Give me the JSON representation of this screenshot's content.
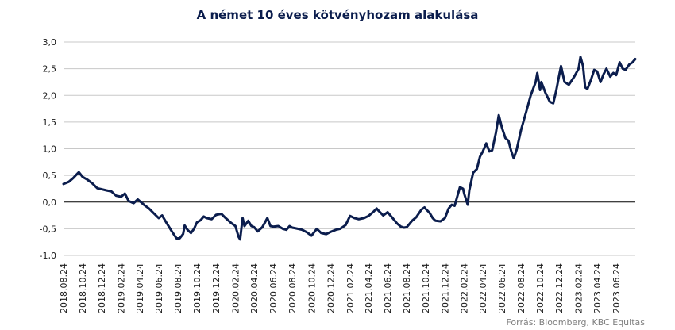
{
  "chart_data": {
    "type": "line",
    "title": "A német 10 éves kötvényhozam alakulása",
    "source": "Forrás: Bloomberg, KBC Equitas",
    "ylim": [
      -1.0,
      3.0
    ],
    "yticks": [
      "3,0",
      "2,5",
      "2,0",
      "1,5",
      "1,0",
      "0,5",
      "0,0",
      "-0,5",
      "-1,0"
    ],
    "ytick_values": [
      3.0,
      2.5,
      2.0,
      1.5,
      1.0,
      0.5,
      0.0,
      -0.5,
      -1.0
    ],
    "grid": true,
    "xticks": [
      "2018.08.24",
      "2018.10.24",
      "2018.12.24",
      "2019.02.24",
      "2019.04.24",
      "2019.06.24",
      "2019.08.24",
      "2019.10.24",
      "2019.12.24",
      "2020.02.24",
      "2020.04.24",
      "2020.06.24",
      "2020.08.24",
      "2020.10.24",
      "2020.12.24",
      "2021.02.24",
      "2021.04.24",
      "2021.06.24",
      "2021.08.24",
      "2021.10.24",
      "2021.12.24",
      "2022.02.24",
      "2022.04.24",
      "2022.06.24",
      "2022.08.24",
      "2022.10.24",
      "2022.12.24",
      "2023.02.24",
      "2023.04.24",
      "2023.06.24"
    ],
    "x_range": [
      "2018.08.24",
      "2023.08.24"
    ],
    "colors": {
      "line": "#0b1d4d",
      "grid": "#c8c8c8",
      "zero_line": "#000000"
    },
    "series": [
      {
        "values": [
          [
            "2018.08.24",
            0.34
          ],
          [
            "2018.09.10",
            0.38
          ],
          [
            "2018.09.24",
            0.45
          ],
          [
            "2018.10.05",
            0.52
          ],
          [
            "2018.10.12",
            0.56
          ],
          [
            "2018.10.24",
            0.47
          ],
          [
            "2018.11.08",
            0.42
          ],
          [
            "2018.11.24",
            0.35
          ],
          [
            "2018.12.10",
            0.26
          ],
          [
            "2018.12.24",
            0.24
          ],
          [
            "2019.01.08",
            0.22
          ],
          [
            "2019.01.24",
            0.2
          ],
          [
            "2019.02.08",
            0.12
          ],
          [
            "2019.02.24",
            0.1
          ],
          [
            "2019.03.08",
            0.16
          ],
          [
            "2019.03.20",
            0.02
          ],
          [
            "2019.04.05",
            -0.02
          ],
          [
            "2019.04.18",
            0.05
          ],
          [
            "2019.04.24",
            0.02
          ],
          [
            "2019.05.10",
            -0.06
          ],
          [
            "2019.05.24",
            -0.12
          ],
          [
            "2019.06.10",
            -0.22
          ],
          [
            "2019.06.24",
            -0.3
          ],
          [
            "2019.07.05",
            -0.25
          ],
          [
            "2019.07.20",
            -0.4
          ],
          [
            "2019.08.05",
            -0.55
          ],
          [
            "2019.08.20",
            -0.68
          ],
          [
            "2019.08.30",
            -0.68
          ],
          [
            "2019.09.10",
            -0.6
          ],
          [
            "2019.09.15",
            -0.44
          ],
          [
            "2019.09.24",
            -0.52
          ],
          [
            "2019.10.05",
            -0.58
          ],
          [
            "2019.10.15",
            -0.5
          ],
          [
            "2019.10.24",
            -0.38
          ],
          [
            "2019.11.05",
            -0.34
          ],
          [
            "2019.11.15",
            -0.27
          ],
          [
            "2019.11.24",
            -0.3
          ],
          [
            "2019.12.10",
            -0.32
          ],
          [
            "2019.12.24",
            -0.24
          ],
          [
            "2020.01.10",
            -0.22
          ],
          [
            "2020.01.24",
            -0.3
          ],
          [
            "2020.02.10",
            -0.39
          ],
          [
            "2020.02.24",
            -0.45
          ],
          [
            "2020.03.05",
            -0.65
          ],
          [
            "2020.03.10",
            -0.7
          ],
          [
            "2020.03.18",
            -0.3
          ],
          [
            "2020.03.24",
            -0.45
          ],
          [
            "2020.04.05",
            -0.35
          ],
          [
            "2020.04.15",
            -0.45
          ],
          [
            "2020.04.24",
            -0.47
          ],
          [
            "2020.05.05",
            -0.55
          ],
          [
            "2020.05.20",
            -0.47
          ],
          [
            "2020.06.05",
            -0.3
          ],
          [
            "2020.06.15",
            -0.45
          ],
          [
            "2020.06.24",
            -0.46
          ],
          [
            "2020.07.10",
            -0.45
          ],
          [
            "2020.07.24",
            -0.5
          ],
          [
            "2020.08.05",
            -0.52
          ],
          [
            "2020.08.15",
            -0.45
          ],
          [
            "2020.08.24",
            -0.48
          ],
          [
            "2020.09.10",
            -0.5
          ],
          [
            "2020.09.24",
            -0.52
          ],
          [
            "2020.10.10",
            -0.57
          ],
          [
            "2020.10.24",
            -0.63
          ],
          [
            "2020.11.10",
            -0.5
          ],
          [
            "2020.11.24",
            -0.58
          ],
          [
            "2020.12.10",
            -0.6
          ],
          [
            "2020.12.24",
            -0.56
          ],
          [
            "2021.01.10",
            -0.52
          ],
          [
            "2021.01.24",
            -0.5
          ],
          [
            "2021.02.10",
            -0.43
          ],
          [
            "2021.02.24",
            -0.26
          ],
          [
            "2021.03.10",
            -0.3
          ],
          [
            "2021.03.24",
            -0.32
          ],
          [
            "2021.04.10",
            -0.3
          ],
          [
            "2021.04.24",
            -0.26
          ],
          [
            "2021.05.10",
            -0.18
          ],
          [
            "2021.05.20",
            -0.12
          ],
          [
            "2021.05.24",
            -0.15
          ],
          [
            "2021.06.10",
            -0.25
          ],
          [
            "2021.06.24",
            -0.19
          ],
          [
            "2021.07.10",
            -0.3
          ],
          [
            "2021.07.24",
            -0.4
          ],
          [
            "2021.08.05",
            -0.46
          ],
          [
            "2021.08.15",
            -0.48
          ],
          [
            "2021.08.24",
            -0.47
          ],
          [
            "2021.09.10",
            -0.35
          ],
          [
            "2021.09.24",
            -0.28
          ],
          [
            "2021.10.10",
            -0.14
          ],
          [
            "2021.10.20",
            -0.1
          ],
          [
            "2021.10.24",
            -0.13
          ],
          [
            "2021.11.05",
            -0.2
          ],
          [
            "2021.11.15",
            -0.3
          ],
          [
            "2021.11.24",
            -0.35
          ],
          [
            "2021.12.10",
            -0.36
          ],
          [
            "2021.12.24",
            -0.3
          ],
          [
            "2022.01.05",
            -0.12
          ],
          [
            "2022.01.15",
            -0.05
          ],
          [
            "2022.01.24",
            -0.07
          ],
          [
            "2022.02.10",
            0.28
          ],
          [
            "2022.02.20",
            0.25
          ],
          [
            "2022.02.24",
            0.15
          ],
          [
            "2022.03.07",
            -0.05
          ],
          [
            "2022.03.12",
            0.22
          ],
          [
            "2022.03.24",
            0.55
          ],
          [
            "2022.04.05",
            0.62
          ],
          [
            "2022.04.15",
            0.85
          ],
          [
            "2022.04.24",
            0.95
          ],
          [
            "2022.05.05",
            1.1
          ],
          [
            "2022.05.15",
            0.95
          ],
          [
            "2022.05.24",
            0.97
          ],
          [
            "2022.06.05",
            1.3
          ],
          [
            "2022.06.14",
            1.63
          ],
          [
            "2022.06.24",
            1.4
          ],
          [
            "2022.07.05",
            1.2
          ],
          [
            "2022.07.15",
            1.15
          ],
          [
            "2022.07.24",
            0.95
          ],
          [
            "2022.08.01",
            0.82
          ],
          [
            "2022.08.10",
            0.98
          ],
          [
            "2022.08.24",
            1.35
          ],
          [
            "2022.09.10",
            1.7
          ],
          [
            "2022.09.24",
            2.0
          ],
          [
            "2022.10.10",
            2.25
          ],
          [
            "2022.10.15",
            2.42
          ],
          [
            "2022.10.24",
            2.1
          ],
          [
            "2022.10.28",
            2.25
          ],
          [
            "2022.11.10",
            2.05
          ],
          [
            "2022.11.24",
            1.88
          ],
          [
            "2022.12.05",
            1.85
          ],
          [
            "2022.12.15",
            2.1
          ],
          [
            "2022.12.24",
            2.38
          ],
          [
            "2022.12.30",
            2.55
          ],
          [
            "2023.01.10",
            2.25
          ],
          [
            "2023.01.24",
            2.2
          ],
          [
            "2023.02.10",
            2.35
          ],
          [
            "2023.02.24",
            2.5
          ],
          [
            "2023.03.02",
            2.72
          ],
          [
            "2023.03.10",
            2.55
          ],
          [
            "2023.03.17",
            2.15
          ],
          [
            "2023.03.24",
            2.12
          ],
          [
            "2023.04.05",
            2.3
          ],
          [
            "2023.04.15",
            2.48
          ],
          [
            "2023.04.24",
            2.45
          ],
          [
            "2023.05.05",
            2.25
          ],
          [
            "2023.05.15",
            2.4
          ],
          [
            "2023.05.24",
            2.5
          ],
          [
            "2023.06.05",
            2.35
          ],
          [
            "2023.06.15",
            2.42
          ],
          [
            "2023.06.24",
            2.38
          ],
          [
            "2023.07.05",
            2.62
          ],
          [
            "2023.07.15",
            2.5
          ],
          [
            "2023.07.24",
            2.48
          ],
          [
            "2023.08.05",
            2.58
          ],
          [
            "2023.08.15",
            2.62
          ],
          [
            "2023.08.24",
            2.68
          ]
        ]
      }
    ]
  }
}
